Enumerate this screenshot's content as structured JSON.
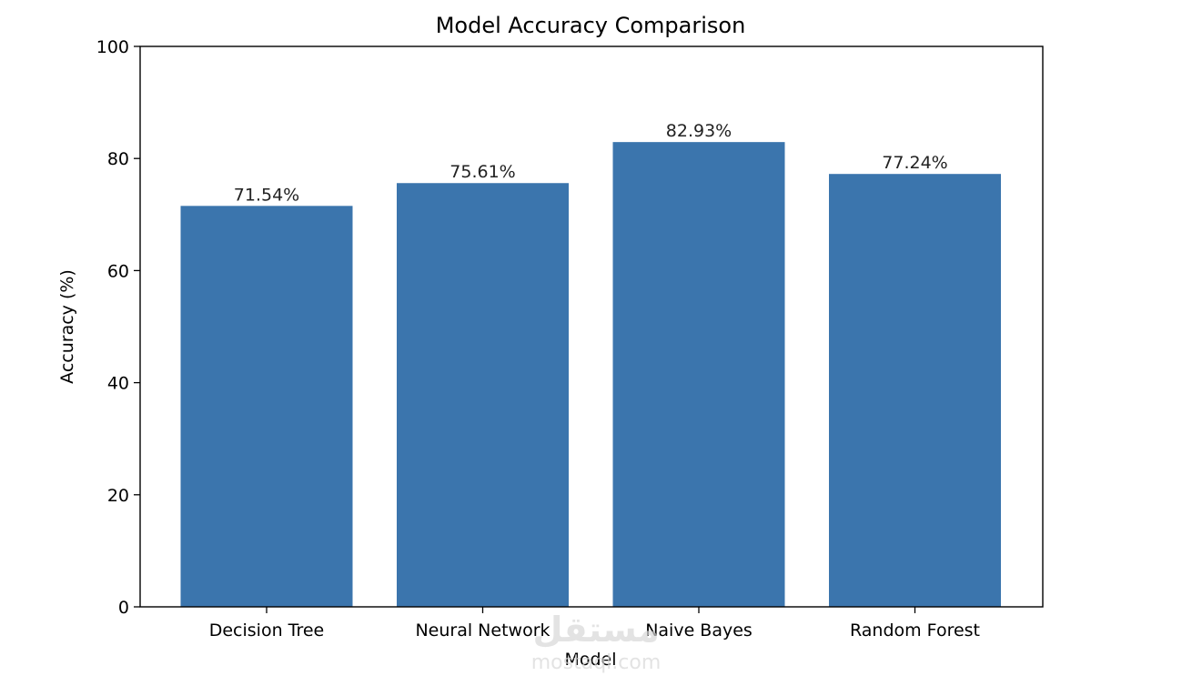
{
  "chart_data": {
    "type": "bar",
    "title": "Model Accuracy Comparison",
    "xlabel": "Model",
    "ylabel": "Accuracy (%)",
    "categories": [
      "Decision Tree",
      "Neural Network",
      "Naive Bayes",
      "Random Forest"
    ],
    "values": [
      71.54,
      75.61,
      82.93,
      77.24
    ],
    "data_labels": [
      "71.54%",
      "75.61%",
      "82.93%",
      "77.24%"
    ],
    "ylim": [
      0,
      100
    ],
    "yticks": [
      0,
      20,
      40,
      60,
      80,
      100
    ],
    "ytick_labels": [
      "0",
      "20",
      "40",
      "60",
      "80",
      "100"
    ],
    "grid": false,
    "bar_color": "#3b75ad"
  },
  "watermark": {
    "logo_text": "مستقل",
    "site_text": "mostaql.com"
  }
}
